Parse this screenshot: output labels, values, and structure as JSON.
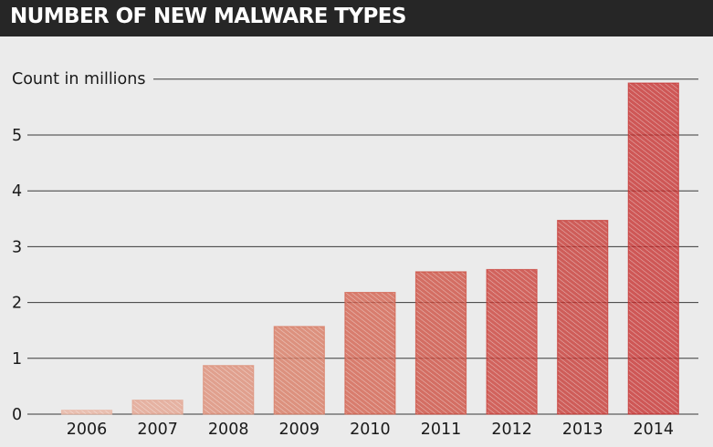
{
  "chart_data": {
    "type": "bar",
    "title": "NUMBER OF NEW MALWARE TYPES",
    "ylabel": "Count in millions",
    "xlabel": "",
    "categories": [
      "2006",
      "2007",
      "2008",
      "2009",
      "2010",
      "2011",
      "2012",
      "2013",
      "2014"
    ],
    "values": [
      0.07,
      0.25,
      0.87,
      1.57,
      2.18,
      2.55,
      2.59,
      3.47,
      5.93
    ],
    "yticks": [
      0,
      1,
      2,
      3,
      4,
      5
    ],
    "ylim": [
      0,
      6
    ],
    "grid": true,
    "colors": [
      "#e8b4a1",
      "#e3a28d",
      "#dc8b74",
      "#d8775f",
      "#d25e4a",
      "#cc4a3c",
      "#c93c34",
      "#c5342f",
      "#c52d2c"
    ]
  }
}
